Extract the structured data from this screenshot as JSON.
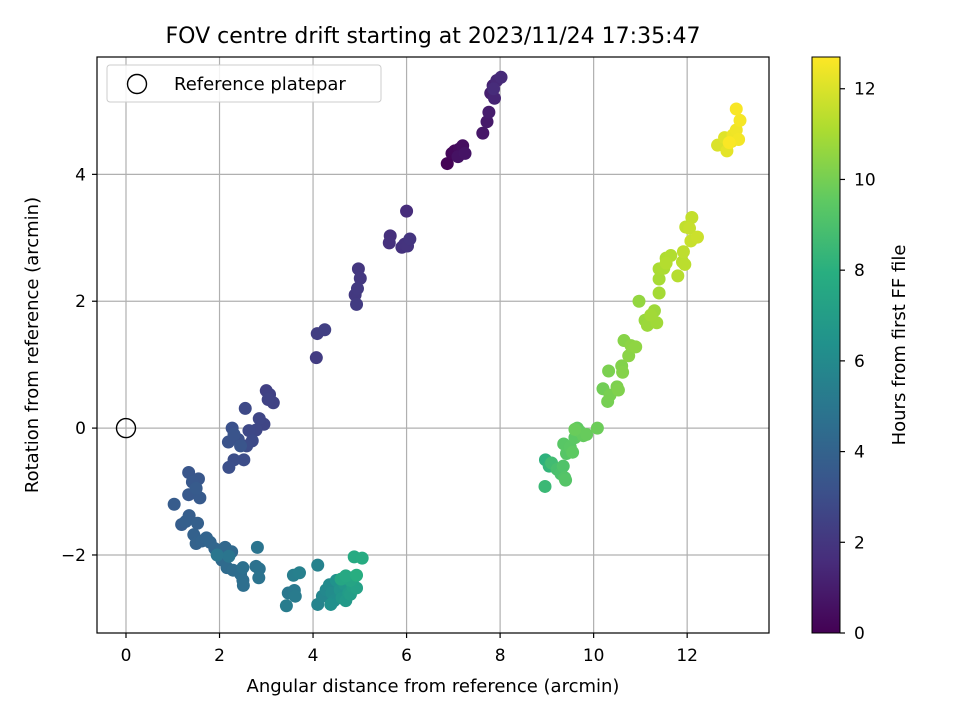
{
  "chart_data": {
    "type": "scatter",
    "title": "FOV centre drift starting at 2023/11/24 17:35:47",
    "xlabel": "Angular distance from reference (arcmin)",
    "ylabel": "Rotation from reference (arcmin)",
    "xlim": [
      -0.62,
      13.75
    ],
    "ylim": [
      -3.23,
      5.85
    ],
    "xticks": [
      0,
      2,
      4,
      6,
      8,
      10,
      12
    ],
    "yticks": [
      -2,
      0,
      2,
      4
    ],
    "grid": true,
    "legend": {
      "location": "upper-left",
      "label": "Reference platepar"
    },
    "reference_point": {
      "x": 0,
      "y": 0
    },
    "colorbar": {
      "label": "Hours from first FF file",
      "colormap": "viridis",
      "range": [
        0,
        12.7
      ],
      "ticks": [
        0,
        2,
        4,
        6,
        8,
        10,
        12
      ]
    },
    "points": [
      [
        6.87,
        4.17,
        0.1
      ],
      [
        6.97,
        4.33,
        0.2
      ],
      [
        7.03,
        4.37,
        0.3
      ],
      [
        7.13,
        4.4,
        0.4
      ],
      [
        7.2,
        4.45,
        0.5
      ],
      [
        7.1,
        4.28,
        0.6
      ],
      [
        7.25,
        4.33,
        0.7
      ],
      [
        7.63,
        4.65,
        0.8
      ],
      [
        7.72,
        4.83,
        0.9
      ],
      [
        7.76,
        4.98,
        1.0
      ],
      [
        7.8,
        5.28,
        1.1
      ],
      [
        7.85,
        5.4,
        1.2
      ],
      [
        7.88,
        5.2,
        1.3
      ],
      [
        7.93,
        5.48,
        1.4
      ],
      [
        8.02,
        5.53,
        1.5
      ],
      [
        7.86,
        5.35,
        1.55
      ],
      [
        6.0,
        3.42,
        1.6
      ],
      [
        5.65,
        3.03,
        1.7
      ],
      [
        5.63,
        2.92,
        1.75
      ],
      [
        5.9,
        2.85,
        1.8
      ],
      [
        5.96,
        2.9,
        1.85
      ],
      [
        6.02,
        2.87,
        1.9
      ],
      [
        6.07,
        2.98,
        1.95
      ],
      [
        4.97,
        2.51,
        2.0
      ],
      [
        5.01,
        2.36,
        2.05
      ],
      [
        4.9,
        2.1,
        2.1
      ],
      [
        4.95,
        2.2,
        2.15
      ],
      [
        4.93,
        1.95,
        2.2
      ],
      [
        4.07,
        1.11,
        2.25
      ],
      [
        4.09,
        1.49,
        2.3
      ],
      [
        4.25,
        1.55,
        2.35
      ],
      [
        3.0,
        0.59,
        2.4
      ],
      [
        3.07,
        0.53,
        2.45
      ],
      [
        3.15,
        0.4,
        2.5
      ],
      [
        3.04,
        0.45,
        2.55
      ],
      [
        2.95,
        0.06,
        2.6
      ],
      [
        2.85,
        0.15,
        2.65
      ],
      [
        2.78,
        -0.03,
        2.7
      ],
      [
        2.63,
        -0.04,
        2.75
      ],
      [
        2.55,
        0.31,
        2.8
      ],
      [
        2.7,
        -0.2,
        2.85
      ],
      [
        2.58,
        -0.28,
        2.9
      ],
      [
        2.52,
        -0.5,
        2.95
      ],
      [
        2.31,
        -0.5,
        3.0
      ],
      [
        2.2,
        -0.62,
        3.05
      ],
      [
        2.4,
        -0.18,
        3.1
      ],
      [
        2.27,
        0.0,
        3.15
      ],
      [
        2.19,
        -0.22,
        3.2
      ],
      [
        2.31,
        -0.1,
        3.25
      ],
      [
        2.45,
        -0.28,
        3.3
      ],
      [
        1.34,
        -0.7,
        3.35
      ],
      [
        1.55,
        -0.8,
        3.4
      ],
      [
        1.42,
        -0.85,
        3.45
      ],
      [
        1.34,
        -1.05,
        3.5
      ],
      [
        1.58,
        -1.1,
        3.55
      ],
      [
        1.5,
        -0.95,
        3.6
      ],
      [
        1.03,
        -1.2,
        3.65
      ],
      [
        1.19,
        -1.52,
        3.7
      ],
      [
        1.35,
        -1.38,
        3.75
      ],
      [
        1.28,
        -1.47,
        3.8
      ],
      [
        1.53,
        -1.5,
        3.85
      ],
      [
        1.45,
        -1.68,
        3.9
      ],
      [
        1.5,
        -1.82,
        3.95
      ],
      [
        1.62,
        -1.78,
        4.0
      ],
      [
        1.72,
        -1.73,
        4.05
      ],
      [
        1.8,
        -1.8,
        4.1
      ],
      [
        1.9,
        -1.9,
        4.15
      ],
      [
        2.0,
        -1.95,
        4.2
      ],
      [
        2.12,
        -1.88,
        4.25
      ],
      [
        2.26,
        -1.95,
        4.3
      ],
      [
        2.05,
        -2.08,
        4.35
      ],
      [
        2.16,
        -2.2,
        4.4
      ],
      [
        2.29,
        -2.24,
        4.45
      ],
      [
        2.45,
        -2.3,
        4.5
      ],
      [
        2.5,
        -2.4,
        4.55
      ],
      [
        2.51,
        -2.48,
        4.6
      ],
      [
        2.5,
        -2.2,
        4.65
      ],
      [
        2.78,
        -2.18,
        4.7
      ],
      [
        2.85,
        -2.22,
        4.75
      ],
      [
        2.84,
        -2.36,
        4.8
      ],
      [
        2.81,
        -1.88,
        4.85
      ],
      [
        2.2,
        -2.02,
        4.9
      ],
      [
        1.95,
        -2.0,
        4.95
      ],
      [
        3.47,
        -2.6,
        5.0
      ],
      [
        3.6,
        -2.56,
        5.1
      ],
      [
        3.62,
        -2.65,
        5.2
      ],
      [
        3.43,
        -2.8,
        5.3
      ],
      [
        3.58,
        -2.32,
        5.4
      ],
      [
        3.71,
        -2.28,
        5.5
      ],
      [
        4.1,
        -2.16,
        5.6
      ],
      [
        4.1,
        -2.78,
        5.7
      ],
      [
        4.2,
        -2.65,
        5.8
      ],
      [
        4.28,
        -2.55,
        5.9
      ],
      [
        4.35,
        -2.47,
        6.0
      ],
      [
        4.4,
        -2.6,
        6.1
      ],
      [
        4.45,
        -2.72,
        6.2
      ],
      [
        4.38,
        -2.78,
        6.3
      ],
      [
        4.5,
        -2.4,
        6.4
      ],
      [
        4.58,
        -2.55,
        6.5
      ],
      [
        4.62,
        -2.68,
        6.6
      ],
      [
        4.66,
        -2.45,
        6.7
      ],
      [
        4.7,
        -2.72,
        6.8
      ],
      [
        4.76,
        -2.6,
        6.9
      ],
      [
        4.8,
        -2.62,
        7.0
      ],
      [
        4.85,
        -2.5,
        7.1
      ],
      [
        4.93,
        -2.52,
        7.2
      ],
      [
        4.88,
        -2.35,
        7.3
      ],
      [
        4.8,
        -2.4,
        7.4
      ],
      [
        4.6,
        -2.38,
        7.5
      ],
      [
        4.7,
        -2.33,
        7.6
      ],
      [
        4.88,
        -2.03,
        7.7
      ],
      [
        5.05,
        -2.05,
        7.8
      ],
      [
        4.93,
        -2.32,
        7.9
      ],
      [
        8.97,
        -0.5,
        8.1
      ],
      [
        9.05,
        -0.6,
        8.3
      ],
      [
        8.96,
        -0.92,
        8.5
      ],
      [
        9.1,
        -0.55,
        8.7
      ],
      [
        9.22,
        -0.65,
        8.9
      ],
      [
        9.3,
        -0.72,
        9.0
      ],
      [
        9.35,
        -0.6,
        9.1
      ],
      [
        9.38,
        -0.78,
        9.2
      ],
      [
        9.4,
        -0.82,
        9.25
      ],
      [
        9.42,
        -0.4,
        9.3
      ],
      [
        9.36,
        -0.25,
        9.35
      ],
      [
        9.5,
        -0.3,
        9.4
      ],
      [
        9.6,
        -0.15,
        9.45
      ],
      [
        9.55,
        -0.38,
        9.5
      ],
      [
        9.65,
        0.0,
        9.55
      ],
      [
        9.7,
        -0.05,
        9.6
      ],
      [
        9.78,
        -0.12,
        9.65
      ],
      [
        9.85,
        -0.1,
        9.7
      ],
      [
        9.6,
        -0.02,
        9.75
      ],
      [
        10.08,
        0.0,
        9.8
      ],
      [
        10.2,
        0.62,
        9.9
      ],
      [
        10.3,
        0.42,
        10.0
      ],
      [
        10.35,
        0.52,
        10.05
      ],
      [
        10.32,
        0.9,
        10.1
      ],
      [
        10.5,
        0.65,
        10.15
      ],
      [
        10.53,
        0.6,
        10.2
      ],
      [
        10.6,
        0.98,
        10.25
      ],
      [
        10.62,
        0.88,
        10.3
      ],
      [
        10.65,
        1.38,
        10.35
      ],
      [
        10.75,
        1.14,
        10.4
      ],
      [
        10.8,
        1.3,
        10.45
      ],
      [
        10.9,
        1.28,
        10.5
      ],
      [
        10.97,
        2.0,
        10.6
      ],
      [
        11.1,
        1.7,
        10.7
      ],
      [
        11.15,
        1.62,
        10.75
      ],
      [
        11.3,
        1.85,
        10.8
      ],
      [
        11.35,
        1.66,
        10.85
      ],
      [
        11.22,
        1.78,
        10.9
      ],
      [
        11.4,
        2.13,
        10.95
      ],
      [
        11.4,
        2.35,
        11.0
      ],
      [
        11.4,
        2.51,
        11.05
      ],
      [
        11.5,
        2.52,
        11.1
      ],
      [
        11.55,
        2.68,
        11.15
      ],
      [
        11.65,
        2.72,
        11.2
      ],
      [
        11.55,
        2.6,
        11.25
      ],
      [
        11.8,
        2.4,
        11.3
      ],
      [
        11.9,
        2.62,
        11.35
      ],
      [
        11.95,
        2.58,
        11.4
      ],
      [
        11.92,
        2.78,
        11.45
      ],
      [
        11.97,
        3.17,
        11.5
      ],
      [
        12.1,
        3.32,
        11.55
      ],
      [
        12.05,
        3.15,
        11.6
      ],
      [
        12.08,
        2.95,
        11.65
      ],
      [
        12.22,
        3.01,
        11.7
      ],
      [
        12.65,
        4.46,
        12.0
      ],
      [
        12.8,
        4.58,
        12.1
      ],
      [
        12.85,
        4.37,
        12.2
      ],
      [
        12.95,
        4.52,
        12.3
      ],
      [
        12.98,
        4.62,
        12.4
      ],
      [
        13.05,
        4.7,
        12.45
      ],
      [
        13.1,
        4.55,
        12.5
      ],
      [
        13.13,
        4.85,
        12.55
      ],
      [
        13.05,
        5.03,
        12.6
      ],
      [
        12.9,
        4.5,
        12.65
      ]
    ]
  }
}
